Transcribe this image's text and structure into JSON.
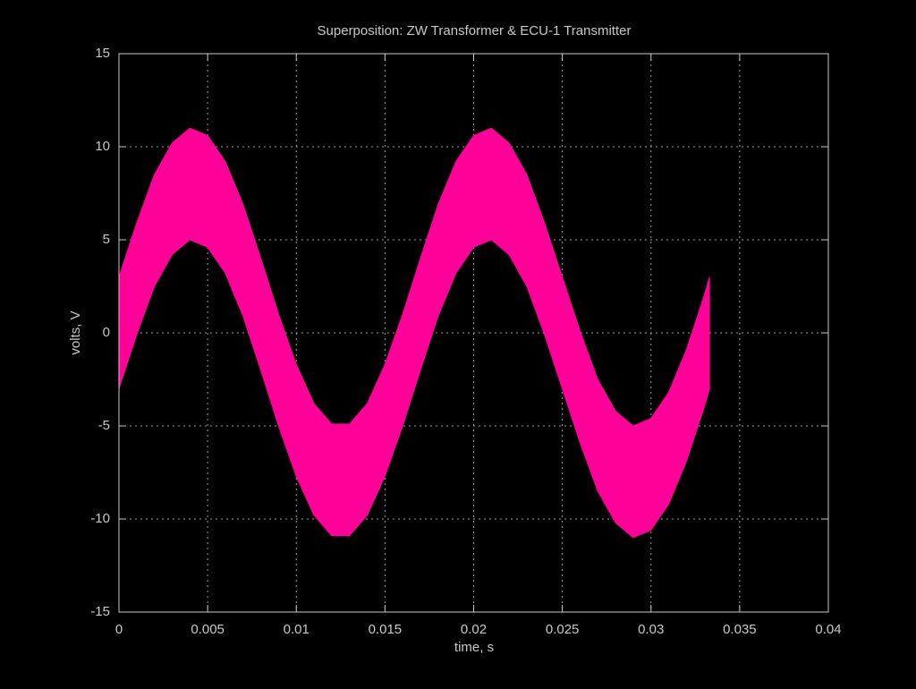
{
  "chart_data": {
    "type": "band",
    "title": "Superposition: ZW Transformer & ECU-1 Transmitter",
    "x_label": "time, s",
    "y_label": "volts, V",
    "x": [
      0,
      0.001,
      0.002,
      0.003,
      0.004,
      0.005,
      0.006,
      0.007,
      0.008,
      0.009,
      0.01,
      0.011,
      0.012,
      0.013,
      0.014,
      0.015,
      0.016,
      0.017,
      0.018,
      0.019,
      0.02,
      0.021,
      0.022,
      0.023,
      0.024,
      0.025,
      0.026,
      0.027,
      0.028,
      0.029,
      0.03,
      0.031,
      0.032,
      0.033,
      0.0333
    ],
    "series": [
      {
        "values": [
          3,
          5.9,
          8.5,
          10.2,
          11,
          10.6,
          9.2,
          6.9,
          4,
          1,
          -1.7,
          -3.8,
          -4.9,
          -4.9,
          -3.8,
          -1.7,
          1,
          4,
          6.9,
          9.2,
          10.6,
          11,
          10.2,
          8.5,
          5.9,
          3,
          0.1,
          -2.5,
          -4.2,
          -5,
          -4.6,
          -3.2,
          -0.9,
          2,
          3
        ]
      },
      {
        "values": [
          -3,
          -0.1,
          2.5,
          4.2,
          5,
          4.6,
          3.2,
          0.9,
          -2,
          -5,
          -7.7,
          -9.8,
          -10.9,
          -10.9,
          -9.8,
          -7.7,
          -5,
          -2,
          0.9,
          3.2,
          4.6,
          5,
          4.2,
          2.5,
          -0.1,
          -3,
          -5.9,
          -8.5,
          -10.2,
          -11,
          -10.6,
          -9.2,
          -6.9,
          -4,
          -3
        ]
      }
    ],
    "color": "#ff0099",
    "xlim": [
      0,
      0.04
    ],
    "xticks": [
      0,
      0.005,
      0.01,
      0.015,
      0.02,
      0.025,
      0.03,
      0.035,
      0.04
    ],
    "ylim": [
      -15,
      15
    ],
    "yticks": [
      -15,
      -10,
      -5,
      0,
      5,
      10,
      15
    ],
    "grid": true
  }
}
